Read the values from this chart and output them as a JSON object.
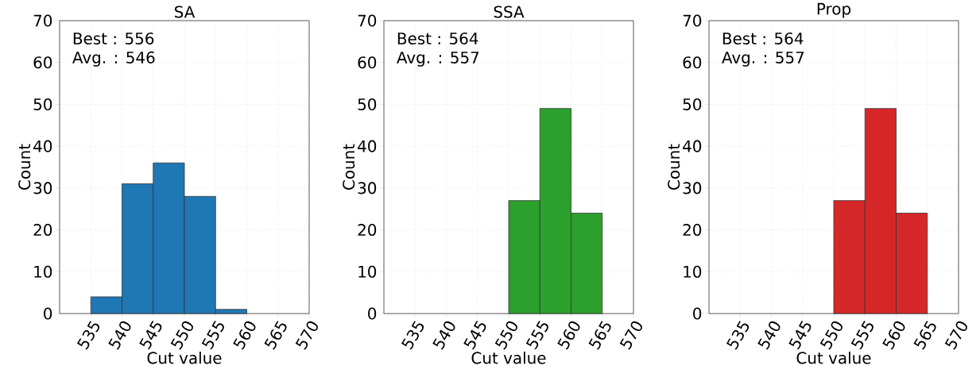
{
  "chart_data": [
    {
      "type": "histogram",
      "title": "SA",
      "xlabel": "Cut value",
      "ylabel": "Count",
      "bins": [
        535,
        540,
        545,
        550,
        555,
        560
      ],
      "values": [
        4,
        31,
        36,
        28,
        1
      ],
      "color": "#1f77b4",
      "xlim": [
        530,
        570
      ],
      "ylim": [
        0,
        70
      ],
      "xticks": [
        535,
        540,
        545,
        550,
        555,
        560,
        565,
        570
      ],
      "yticks": [
        0,
        10,
        20,
        30,
        40,
        50,
        60,
        70
      ],
      "grid": true,
      "annotations": [
        "Best : 556",
        "Avg. : 546"
      ]
    },
    {
      "type": "histogram",
      "title": "SSA",
      "xlabel": "Cut value",
      "ylabel": "Count",
      "bins": [
        550,
        555,
        560,
        565
      ],
      "values": [
        27,
        49,
        24
      ],
      "color": "#2ca02c",
      "xlim": [
        530,
        570
      ],
      "ylim": [
        0,
        70
      ],
      "xticks": [
        535,
        540,
        545,
        550,
        555,
        560,
        565,
        570
      ],
      "yticks": [
        0,
        10,
        20,
        30,
        40,
        50,
        60,
        70
      ],
      "grid": true,
      "annotations": [
        "Best : 564",
        "Avg. : 557"
      ]
    },
    {
      "type": "histogram",
      "title": "Prop",
      "xlabel": "Cut value",
      "ylabel": "Count",
      "bins": [
        550,
        555,
        560,
        565
      ],
      "values": [
        27,
        49,
        24
      ],
      "color": "#d62728",
      "xlim": [
        530,
        570
      ],
      "ylim": [
        0,
        70
      ],
      "xticks": [
        535,
        540,
        545,
        550,
        555,
        560,
        565,
        570
      ],
      "yticks": [
        0,
        10,
        20,
        30,
        40,
        50,
        60,
        70
      ],
      "grid": true,
      "annotations": [
        "Best : 564",
        "Avg. : 557"
      ]
    }
  ]
}
